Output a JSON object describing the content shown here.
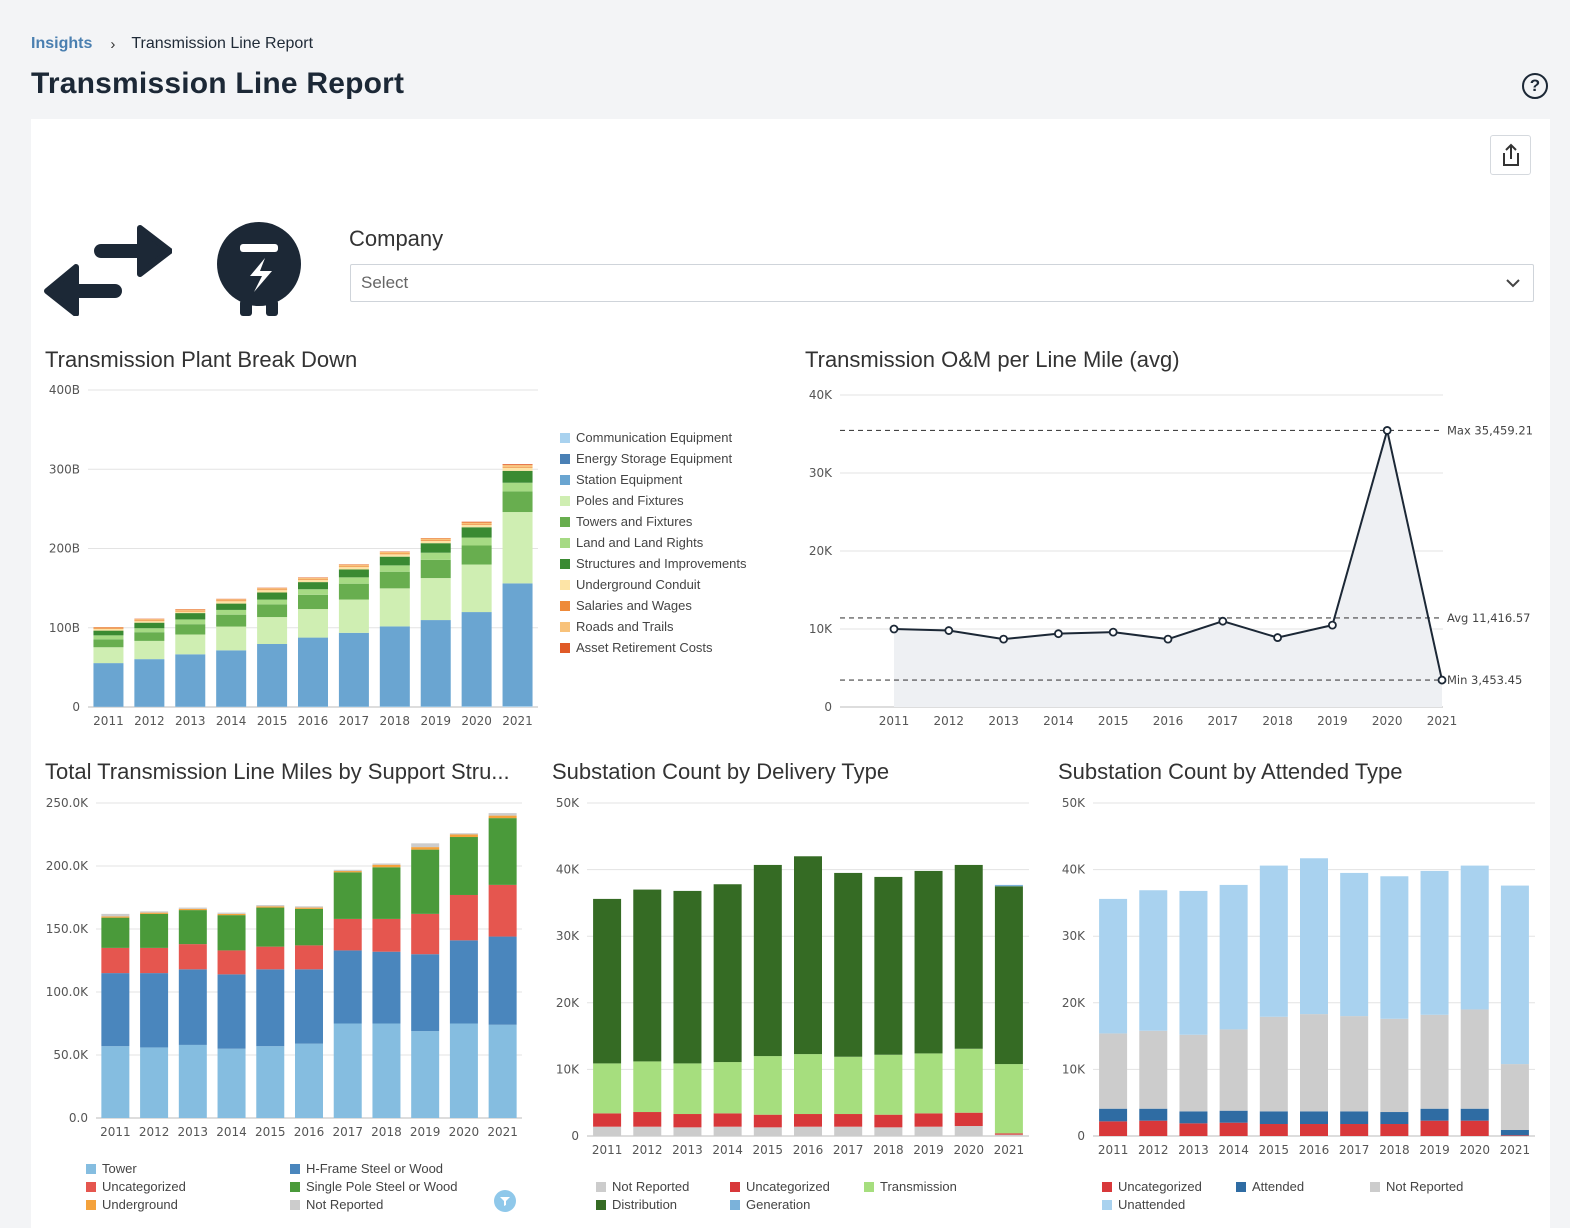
{
  "breadcrumb": {
    "root": "Insights",
    "current": "Transmission Line Report"
  },
  "page": {
    "title": "Transmission Line Report",
    "help_icon": "help-circle-icon",
    "help_glyph": "?",
    "export_icon": "share-export-icon"
  },
  "filter": {
    "label": "Company",
    "placeholder": "Select"
  },
  "colors": {
    "accent": "#4a7fb0",
    "dark": "#1c2836"
  },
  "chart_data": [
    {
      "id": "plant",
      "type": "bar",
      "stacked": true,
      "title": "Transmission Plant Break Down",
      "categories": [
        "2011",
        "2012",
        "2013",
        "2014",
        "2015",
        "2016",
        "2017",
        "2018",
        "2019",
        "2020",
        "2021"
      ],
      "ylim": [
        0,
        400
      ],
      "yticks": [
        "0",
        "100B",
        "200B",
        "300B",
        "400B"
      ],
      "series": [
        {
          "name": "Communication Equipment",
          "color": "#a9d2ef",
          "values": [
            0.4,
            0.4,
            0.5,
            0.5,
            0.5,
            0.6,
            0.6,
            0.7,
            0.7,
            0.8,
            1
          ]
        },
        {
          "name": "Energy Storage Equipment",
          "color": "#4a80b5",
          "values": [
            0,
            0,
            0,
            0,
            0,
            0,
            0,
            0,
            0,
            0,
            0
          ]
        },
        {
          "name": "Station Equipment",
          "color": "#6aa5d1",
          "values": [
            55,
            60,
            66,
            71,
            79,
            87,
            93,
            101,
            109,
            119,
            155
          ]
        },
        {
          "name": "Poles and Fixtures",
          "color": "#cfeeb2",
          "values": [
            20,
            23,
            25,
            30,
            34,
            36,
            42,
            48,
            53,
            60,
            90
          ]
        },
        {
          "name": "Towers and Fixtures",
          "color": "#68ae4f",
          "values": [
            10,
            11,
            13,
            15,
            16,
            18,
            20,
            21,
            23,
            24,
            26
          ]
        },
        {
          "name": "Land and Land Rights",
          "color": "#a6da84",
          "values": [
            5,
            5,
            6,
            6,
            6,
            7,
            8,
            8,
            9,
            10,
            11
          ]
        },
        {
          "name": "Structures and Improvements",
          "color": "#3a8a32",
          "values": [
            6,
            7,
            8,
            8,
            9,
            9,
            10,
            11,
            12,
            13,
            15
          ]
        },
        {
          "name": "Underground Conduit",
          "color": "#fde4a6",
          "values": [
            2,
            2,
            2,
            3,
            3,
            3,
            3,
            3,
            3,
            3,
            4
          ]
        },
        {
          "name": "Salaries and Wages",
          "color": "#ee8a3a",
          "values": [
            1,
            1,
            1,
            1,
            1,
            1,
            1,
            1,
            1,
            1,
            1
          ]
        },
        {
          "name": "Roads and Trails",
          "color": "#f8c27a",
          "values": [
            1,
            1.5,
            1.5,
            1.5,
            1.5,
            1.5,
            2,
            2,
            2,
            2,
            2.5
          ]
        },
        {
          "name": "Asset Retirement Costs",
          "color": "#e05a27",
          "values": [
            0.5,
            0.5,
            0.5,
            0.5,
            0.5,
            0.5,
            0.5,
            0.5,
            0.5,
            1,
            1
          ]
        }
      ]
    },
    {
      "id": "om",
      "type": "line",
      "title": "Transmission O&M per Line Mile (avg)",
      "categories": [
        "2011",
        "2012",
        "2013",
        "2014",
        "2015",
        "2016",
        "2017",
        "2018",
        "2019",
        "2020",
        "2021"
      ],
      "values": [
        10000,
        9800,
        8700,
        9400,
        9600,
        8700,
        11000,
        8900,
        10500,
        35459.21,
        3453.45
      ],
      "ylim": [
        0,
        40000
      ],
      "yticks": [
        "0",
        "10K",
        "20K",
        "30K",
        "40K"
      ],
      "reference_lines": [
        {
          "label": "Max 35,459.21",
          "value": 35459.21
        },
        {
          "label": "Avg 11,416.57",
          "value": 11416.57
        },
        {
          "label": "Min 3,453.45",
          "value": 3453.45
        }
      ]
    },
    {
      "id": "miles",
      "type": "bar",
      "stacked": true,
      "title": "Total Transmission Line Miles by Support Stru...",
      "categories": [
        "2011",
        "2012",
        "2013",
        "2014",
        "2015",
        "2016",
        "2017",
        "2018",
        "2019",
        "2020",
        "2021"
      ],
      "ylim": [
        0,
        250
      ],
      "yticks": [
        "0.0",
        "50.0K",
        "100.0K",
        "150.0K",
        "200.0K",
        "250.0K"
      ],
      "legend_columns": 2,
      "series": [
        {
          "name": "Tower",
          "color": "#85bde0",
          "values": [
            57,
            56,
            58,
            55,
            57,
            59,
            75,
            75,
            69,
            75,
            74
          ]
        },
        {
          "name": "H-Frame Steel or Wood",
          "color": "#4a86bd",
          "values": [
            58,
            59,
            60,
            59,
            61,
            59,
            58,
            57,
            61,
            66,
            70
          ]
        },
        {
          "name": "Uncategorized",
          "color": "#e5564f",
          "values": [
            20,
            20,
            20,
            19,
            18,
            19,
            25,
            26,
            32,
            36,
            41
          ]
        },
        {
          "name": "Single Pole Steel or Wood",
          "color": "#4a9a3a",
          "values": [
            24,
            27,
            27,
            28,
            31,
            29,
            37,
            41,
            51,
            46,
            53
          ]
        },
        {
          "name": "Underground",
          "color": "#f4a23c",
          "values": [
            1,
            1,
            1,
            1,
            1,
            1,
            1,
            2,
            2,
            2,
            2
          ]
        },
        {
          "name": "Not Reported",
          "color": "#cccccc",
          "values": [
            2,
            1,
            1,
            1,
            1,
            1,
            1,
            1,
            3,
            1,
            2
          ]
        }
      ]
    },
    {
      "id": "delivery",
      "type": "bar",
      "stacked": true,
      "title": "Substation Count by Delivery Type",
      "categories": [
        "2011",
        "2012",
        "2013",
        "2014",
        "2015",
        "2016",
        "2017",
        "2018",
        "2019",
        "2020",
        "2021"
      ],
      "ylim": [
        0,
        50000
      ],
      "yticks": [
        "0",
        "10K",
        "20K",
        "30K",
        "40K",
        "50K"
      ],
      "legend_columns": 3,
      "series": [
        {
          "name": "Not Reported",
          "color": "#cccccc",
          "values": [
            1400,
            1400,
            1300,
            1400,
            1300,
            1400,
            1400,
            1300,
            1400,
            1500,
            200
          ]
        },
        {
          "name": "Uncategorized",
          "color": "#d8383a",
          "values": [
            2000,
            2200,
            2000,
            2000,
            1900,
            1900,
            1900,
            1900,
            2000,
            2000,
            200
          ]
        },
        {
          "name": "Transmission",
          "color": "#a6de7e",
          "values": [
            7500,
            7600,
            7600,
            7700,
            8800,
            9000,
            8600,
            9000,
            9000,
            9600,
            10400
          ]
        },
        {
          "name": "Distribution",
          "color": "#356b24",
          "values": [
            24700,
            25800,
            25900,
            26700,
            28700,
            29700,
            27600,
            26700,
            27400,
            27600,
            26700
          ]
        },
        {
          "name": "Generation",
          "color": "#7bb2da",
          "values": [
            0,
            0,
            0,
            0,
            0,
            0,
            0,
            0,
            0,
            0,
            200
          ]
        }
      ]
    },
    {
      "id": "attended",
      "type": "bar",
      "stacked": true,
      "title": "Substation Count by Attended Type",
      "categories": [
        "2011",
        "2012",
        "2013",
        "2014",
        "2015",
        "2016",
        "2017",
        "2018",
        "2019",
        "2020",
        "2021"
      ],
      "ylim": [
        0,
        50000
      ],
      "yticks": [
        "0",
        "10K",
        "20K",
        "30K",
        "40K",
        "50K"
      ],
      "legend_columns": 3,
      "series": [
        {
          "name": "Uncategorized",
          "color": "#d8383a",
          "values": [
            2200,
            2300,
            1900,
            2000,
            1800,
            1800,
            1800,
            1800,
            2300,
            2300,
            100
          ]
        },
        {
          "name": "Attended",
          "color": "#2f6ca3",
          "values": [
            1900,
            1800,
            1800,
            1800,
            1900,
            1900,
            1900,
            1800,
            1800,
            1800,
            800
          ]
        },
        {
          "name": "Not Reported",
          "color": "#cccccc",
          "values": [
            11300,
            11700,
            11500,
            12200,
            14200,
            14600,
            14300,
            14000,
            14100,
            14900,
            9900
          ]
        },
        {
          "name": "Unattended",
          "color": "#a9d2ef",
          "values": [
            20200,
            21100,
            21600,
            21700,
            22700,
            23400,
            21500,
            21400,
            21600,
            21600,
            26800
          ]
        }
      ]
    }
  ]
}
